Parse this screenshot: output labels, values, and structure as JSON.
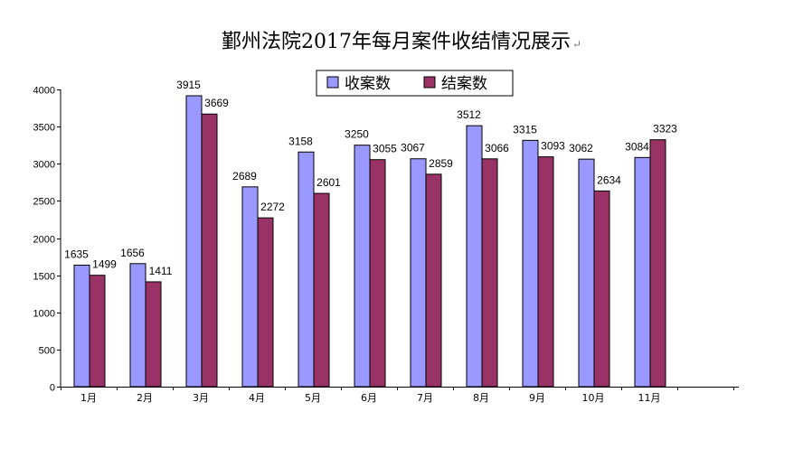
{
  "chart_data": {
    "type": "bar",
    "title": "鄞州法院2017年每月案件收结情况展示",
    "title_mark": "↵",
    "categories": [
      "1月",
      "2月",
      "3月",
      "4月",
      "5月",
      "6月",
      "7月",
      "8月",
      "9月",
      "10月",
      "11月"
    ],
    "series": [
      {
        "name": "收案数",
        "color": "#9999ff",
        "values": [
          1635,
          1656,
          3915,
          2689,
          3158,
          3250,
          3067,
          3512,
          3315,
          3062,
          3084
        ]
      },
      {
        "name": "结案数",
        "color": "#993366",
        "values": [
          1499,
          1411,
          3669,
          2272,
          2601,
          3055,
          2859,
          3066,
          3093,
          2634,
          3323
        ]
      }
    ],
    "ylim": [
      0,
      4000
    ],
    "yticks": [
      0,
      500,
      1000,
      1500,
      2000,
      2500,
      3000,
      3500,
      4000
    ],
    "xlabel": "",
    "ylabel": "",
    "grid": false,
    "legend": "top-center"
  }
}
